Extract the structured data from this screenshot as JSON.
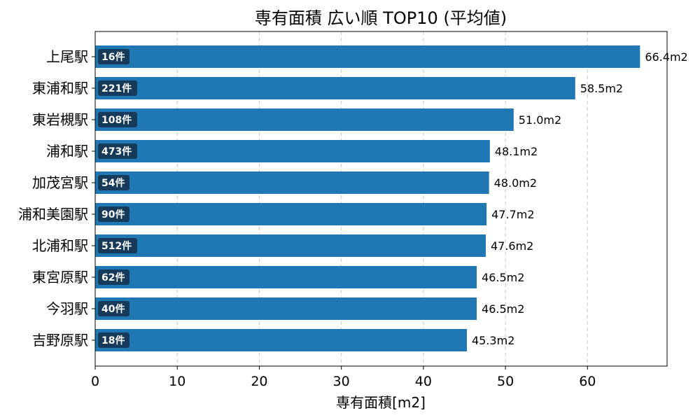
{
  "chart_data": {
    "type": "bar",
    "orientation": "horizontal",
    "title": "専有面積 広い順 TOP10 (平均値)",
    "xlabel": "専有面積[m2]",
    "ylabel": "",
    "xlim": [
      0,
      69.7
    ],
    "xticks": [
      0,
      10,
      20,
      30,
      40,
      50,
      60
    ],
    "grid": "x-dashed",
    "bar_color": "#1f77b4",
    "badge_color": "#163a5a",
    "value_suffix": "m2",
    "categories": [
      "上尾駅",
      "東浦和駅",
      "東岩槻駅",
      "浦和駅",
      "加茂宮駅",
      "浦和美園駅",
      "北浦和駅",
      "東宮原駅",
      "今羽駅",
      "吉野原駅"
    ],
    "values": [
      66.4,
      58.5,
      51.0,
      48.1,
      48.0,
      47.7,
      47.6,
      46.5,
      46.5,
      45.3
    ],
    "value_labels": [
      "66.4m2",
      "58.5m2",
      "51.0m2",
      "48.1m2",
      "48.0m2",
      "47.7m2",
      "47.6m2",
      "46.5m2",
      "46.5m2",
      "45.3m2"
    ],
    "counts": [
      "16件",
      "221件",
      "108件",
      "473件",
      "54件",
      "90件",
      "512件",
      "62件",
      "40件",
      "18件"
    ]
  }
}
